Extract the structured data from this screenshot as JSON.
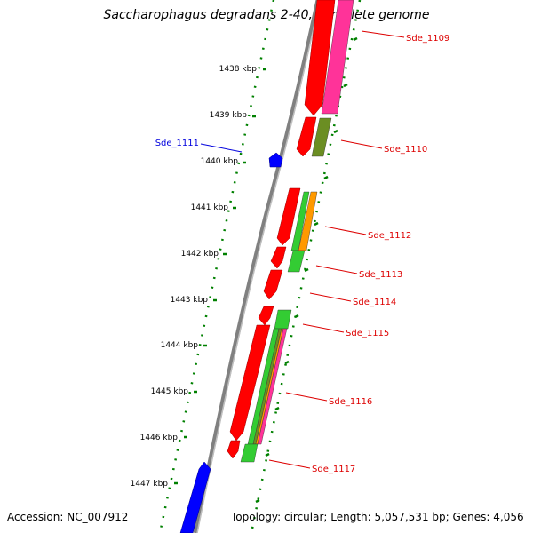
{
  "title": "Saccharophagus degradans 2-40, complete genome",
  "footer": {
    "accession": "Accession: NC_007912",
    "summary": "Topology: circular; Length: 5,057,531 bp; Genes: 4,056"
  },
  "scale_unit": "kbp",
  "position_ticks": [
    {
      "position": 1438,
      "label": "1438 kbp"
    },
    {
      "position": 1439,
      "label": "1439 kbp"
    },
    {
      "position": 1440,
      "label": "1440 kbp"
    },
    {
      "position": 1441,
      "label": "1441 kbp"
    },
    {
      "position": 1442,
      "label": "1442 kbp"
    },
    {
      "position": 1443,
      "label": "1443 kbp"
    },
    {
      "position": 1444,
      "label": "1444 kbp"
    },
    {
      "position": 1445,
      "label": "1445 kbp"
    },
    {
      "position": 1446,
      "label": "1446 kbp"
    },
    {
      "position": 1447,
      "label": "1447 kbp"
    }
  ],
  "gene_labels": [
    {
      "name": "Sde_1109",
      "strand": "forward",
      "color": "#dd0000"
    },
    {
      "name": "Sde_1110",
      "strand": "forward",
      "color": "#dd0000"
    },
    {
      "name": "Sde_1111",
      "strand": "reverse",
      "color": "#0000dd"
    },
    {
      "name": "Sde_1112",
      "strand": "forward",
      "color": "#dd0000"
    },
    {
      "name": "Sde_1113",
      "strand": "forward",
      "color": "#dd0000"
    },
    {
      "name": "Sde_1114",
      "strand": "forward",
      "color": "#dd0000"
    },
    {
      "name": "Sde_1115",
      "strand": "forward",
      "color": "#dd0000"
    },
    {
      "name": "Sde_1116",
      "strand": "forward",
      "color": "#dd0000"
    },
    {
      "name": "Sde_1117",
      "strand": "forward",
      "color": "#dd0000"
    }
  ],
  "colors": {
    "backbone": "#808080",
    "forward_cds": "#ff0000",
    "reverse_cds": "#0000ff",
    "cog_magenta": "#ff3399",
    "cog_olive": "#6b8e23",
    "cog_green": "#33cc33",
    "cog_orange": "#ff9900",
    "tick_green": "#008000"
  }
}
